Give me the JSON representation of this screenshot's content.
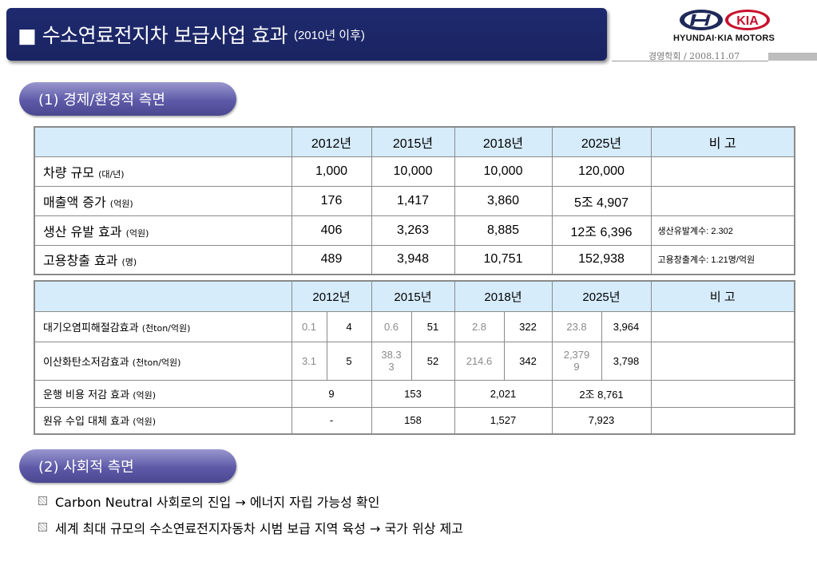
{
  "title": {
    "main": "■ 수소연료전지차 보급사업 효과",
    "sub": "(2010년 이후)"
  },
  "logo": {
    "text": "HYUNDAI·KIA MOTORS",
    "brand_color": "#1f2a5a",
    "kia_color": "#c8102e"
  },
  "footer_note": "경영학회 / 2008.11.07",
  "section1": "(1) 경제/환경적 측면",
  "section2": "(2) 사회적 측면",
  "table1": {
    "headers": [
      "",
      "2012년",
      "2015년",
      "2018년",
      "2025년",
      "비 고"
    ],
    "rows": [
      {
        "label": "차량 규모 ",
        "unit": "(대/년)",
        "values": [
          "1,000",
          "10,000",
          "10,000",
          "120,000"
        ],
        "note": ""
      },
      {
        "label": "매출액 증가 ",
        "unit": "(억원)",
        "values": [
          "176",
          "1,417",
          "3,860",
          "5조 4,907"
        ],
        "note": ""
      },
      {
        "label": "생산 유발 효과 ",
        "unit": "(억원)",
        "values": [
          "406",
          "3,263",
          "8,885",
          "12조 6,396"
        ],
        "note": "생산유발계수: 2.302"
      },
      {
        "label": "고용창출 효과 ",
        "unit": "(명)",
        "values": [
          "489",
          "3,948",
          "10,751",
          "152,938"
        ],
        "note": "고용창출계수: 1.21명/억원"
      }
    ]
  },
  "table2": {
    "headers": [
      "",
      "2012년",
      "2015년",
      "2018년",
      "2025년",
      "비 고"
    ],
    "rows": [
      {
        "label": "대기오염피해절감효과 ",
        "unit": "(천ton/억원)",
        "cells": [
          "0.1",
          "4",
          "0.6",
          "51",
          "2.8",
          "322",
          "23.8",
          "3,964"
        ]
      },
      {
        "label": "이산화탄소저감효과 ",
        "unit": "(천ton/억원)",
        "cells": [
          "3.1",
          "5",
          "38.3\n3",
          "52",
          "214.6",
          "342",
          "2,379\n9",
          "3,798"
        ]
      },
      {
        "label": "운행 비용 저감 효과 ",
        "unit": "(억원)",
        "merged": [
          "9",
          "153",
          "2,021",
          "2조 8,761"
        ]
      },
      {
        "label": "원유 수입 대체 효과 ",
        "unit": "(억원)",
        "merged": [
          "-",
          "158",
          "1,527",
          "7,923"
        ]
      }
    ]
  },
  "bullets": [
    "Carbon Neutral  사회로의 진입 → 에너지 자립 가능성 확인",
    "세계 최대 규모의 수소연료전지자동차 시범 보급 지역 육성 → 국가 위상 제고"
  ]
}
